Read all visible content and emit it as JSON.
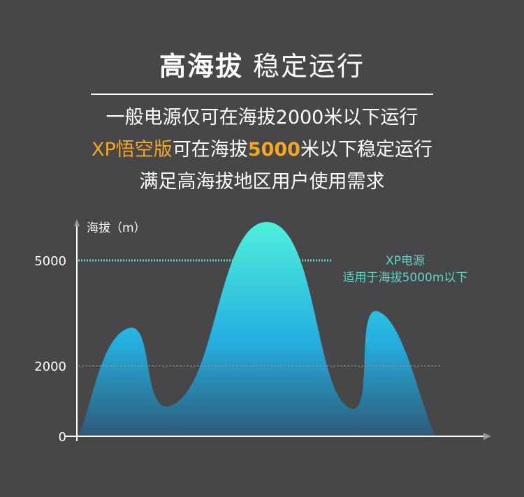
{
  "header": {
    "title_bold": "高海拔",
    "title_normal": "稳定运行",
    "line1": "一般电源仅可在海拔2000米以下运行",
    "line2_brand": "XP悟空版",
    "line2_mid": "可在海拔",
    "line2_value": "5000",
    "line2_end": "米以下稳定运行",
    "line3": "满足高海拔地区用户使用需求"
  },
  "colors": {
    "background": "#474749",
    "accent": "#f5a623",
    "teal": "#5fd3c8",
    "gradient_top": "#4ff0dc",
    "gradient_mid": "#24b0e0",
    "gradient_bottom": "#2e5a78"
  },
  "chart_data": {
    "type": "area",
    "ylabel": "海拔（m）",
    "xlabel": "",
    "ylim": [
      0,
      6300
    ],
    "yticks": [
      "0",
      "2000",
      "5000"
    ],
    "ytick_values": [
      0,
      2000,
      5000
    ],
    "x": [
      0,
      14,
      28,
      53,
      75,
      84,
      100
    ],
    "values": [
      0,
      3070,
      990,
      6090,
      870,
      3550,
      0
    ],
    "reference_lines": [
      {
        "value": 5000,
        "style": "dotted",
        "color": "#5fd3c8"
      },
      {
        "value": 2000,
        "style": "dashed",
        "color": "#9a9a9a"
      }
    ],
    "annotation": {
      "line1": "XP电源",
      "line2": "适用于海拔5000m以下"
    }
  }
}
